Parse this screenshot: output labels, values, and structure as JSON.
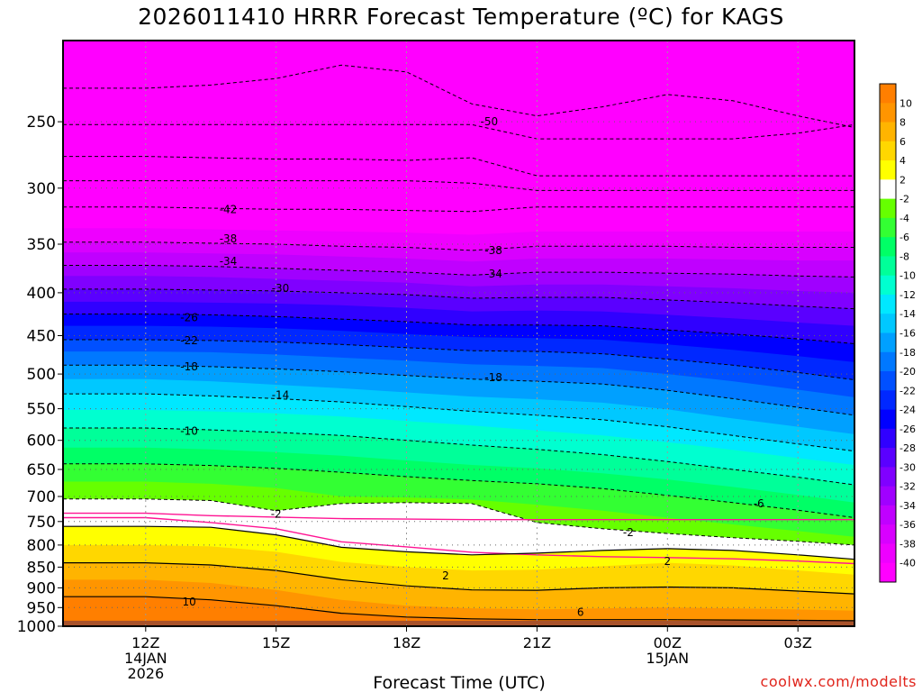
{
  "title": "2026011410 HRRR Forecast Temperature (ºC) for KAGS",
  "credit": "coolwx.com/modelts",
  "chart_data": {
    "type": "heatmap",
    "title": "2026011410 HRRR Forecast Temperature (ºC) for KAGS",
    "xlabel": "Forecast Time (UTC)",
    "ylabel": "",
    "y_axis": "pressure (hPa), log scale, inverted",
    "ylim": [
      1000,
      200
    ],
    "xlim_hours_from_12Z": [
      -1.9,
      16.3
    ],
    "y_ticks": [
      "250",
      "300",
      "350",
      "400",
      "450",
      "500",
      "550",
      "600",
      "650",
      "700",
      "750",
      "800",
      "850",
      "900",
      "950",
      "1000"
    ],
    "x_ticks": [
      {
        "hour": 0,
        "label": "12Z",
        "sub1": "14JAN",
        "sub2": "2026"
      },
      {
        "hour": 3,
        "label": "15Z",
        "sub1": "",
        "sub2": ""
      },
      {
        "hour": 6,
        "label": "18Z",
        "sub1": "",
        "sub2": ""
      },
      {
        "hour": 9,
        "label": "21Z",
        "sub1": "",
        "sub2": ""
      },
      {
        "hour": 12,
        "label": "00Z",
        "sub1": "15JAN",
        "sub2": ""
      },
      {
        "hour": 15,
        "label": "03Z",
        "sub1": "",
        "sub2": ""
      }
    ],
    "colorbar": {
      "levels": [
        -40,
        -38,
        -36,
        -34,
        -32,
        -30,
        -28,
        -26,
        -24,
        -22,
        -20,
        -18,
        -16,
        -14,
        -12,
        -10,
        -8,
        -6,
        -4,
        -2,
        2,
        4,
        6,
        8,
        10
      ],
      "labels": [
        "-40",
        "-38",
        "-36",
        "-34",
        "-32",
        "-30",
        "-28",
        "-26",
        "-24",
        "-22",
        "-20",
        "-18",
        "-16",
        "-14",
        "-12",
        "-10",
        "-8",
        "-6",
        "-4",
        "-2",
        "2",
        "4",
        "6",
        "8",
        "10"
      ],
      "colors": [
        "#ff00ff",
        "#ee00ff",
        "#d800ff",
        "#c000ff",
        "#a000ff",
        "#8000ff",
        "#5a00ff",
        "#3000ff",
        "#0000ff",
        "#0028ff",
        "#0050ff",
        "#0078ff",
        "#00a0ff",
        "#00c8ff",
        "#00e8ff",
        "#00ffd0",
        "#00ff99",
        "#00ff66",
        "#33ff33",
        "#66ff00",
        "#ffffff",
        "#ffff00",
        "#ffd700",
        "#ffb400",
        "#ff9500",
        "#ff7f00"
      ]
    },
    "contour_labels": [
      {
        "value": "-50",
        "hour": 7.9,
        "p": 250
      },
      {
        "value": "-42",
        "hour": 1.9,
        "p": 318
      },
      {
        "value": "-38",
        "hour": 1.9,
        "p": 345
      },
      {
        "value": "-38",
        "hour": 8.0,
        "p": 356
      },
      {
        "value": "-34",
        "hour": 1.9,
        "p": 367
      },
      {
        "value": "-34",
        "hour": 8.0,
        "p": 380
      },
      {
        "value": "-30",
        "hour": 3.1,
        "p": 395
      },
      {
        "value": "-26",
        "hour": 1.0,
        "p": 428
      },
      {
        "value": "-22",
        "hour": 1.0,
        "p": 456
      },
      {
        "value": "-18",
        "hour": 1.0,
        "p": 490
      },
      {
        "value": "-18",
        "hour": 8.0,
        "p": 505
      },
      {
        "value": "-14",
        "hour": 3.1,
        "p": 530
      },
      {
        "value": "-10",
        "hour": 1.0,
        "p": 585
      },
      {
        "value": "-2",
        "hour": 3.0,
        "p": 735
      },
      {
        "value": "-6",
        "hour": 14.1,
        "p": 714
      },
      {
        "value": "-2",
        "hour": 11.1,
        "p": 773
      },
      {
        "value": "2",
        "hour": 12.0,
        "p": 837
      },
      {
        "value": "2",
        "hour": 6.9,
        "p": 870
      },
      {
        "value": "10",
        "hour": 1.0,
        "p": 935
      },
      {
        "value": "6",
        "hour": 10.0,
        "p": 962
      }
    ]
  }
}
